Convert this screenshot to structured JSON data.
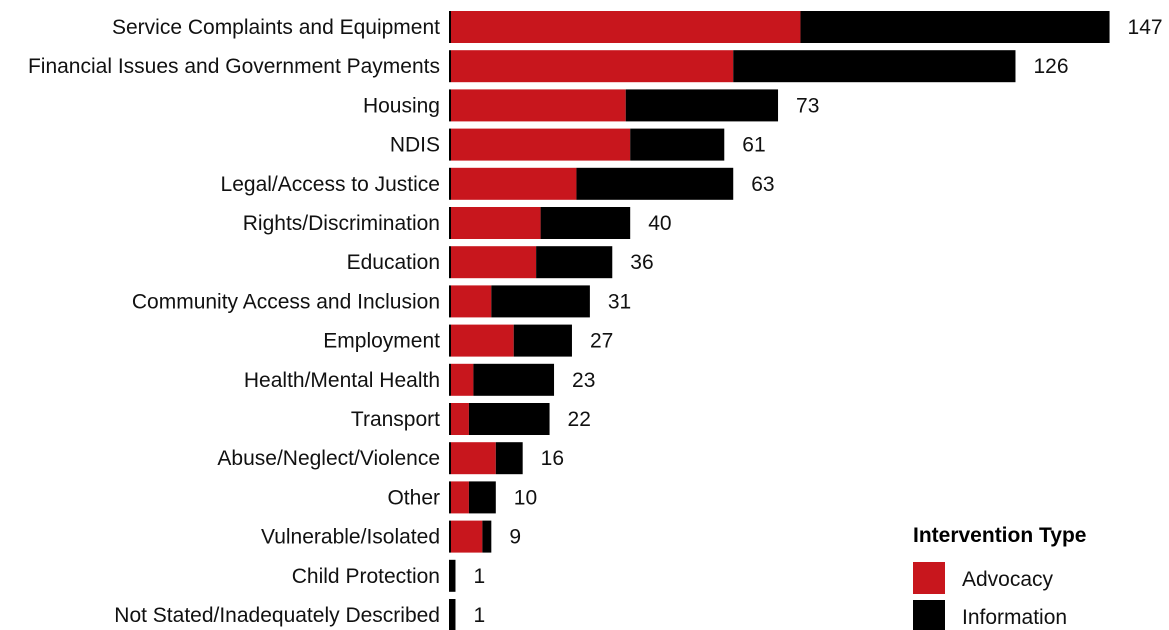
{
  "chart_data": {
    "type": "bar",
    "orientation": "horizontal",
    "stacked": true,
    "categories": [
      "Service Complaints and Equipment",
      "Financial Issues and Government Payments",
      "Housing",
      "NDIS",
      "Legal/Access to Justice",
      "Rights/Discrimination",
      "Education",
      "Community Access and Inclusion",
      "Employment",
      "Health/Mental Health",
      "Transport",
      "Abuse/Neglect/Violence",
      "Other",
      "Vulnerable/Isolated",
      "Child Protection",
      "Not Stated/Inadequately Described"
    ],
    "series": [
      {
        "name": "Advocacy",
        "color": "#c8161d",
        "values": [
          78,
          63,
          39,
          40,
          28,
          20,
          19,
          9,
          14,
          5,
          4,
          10,
          4,
          7,
          0,
          0
        ]
      },
      {
        "name": "Information",
        "color": "#000000",
        "values": [
          69,
          63,
          34,
          21,
          35,
          20,
          17,
          22,
          13,
          18,
          18,
          6,
          6,
          2,
          1,
          1
        ]
      }
    ],
    "totals": [
      "147",
      "126",
      "73",
      "61",
      "63",
      "40",
      "36",
      "31",
      "27",
      "23",
      "22",
      "16",
      "10",
      "9",
      "1",
      "1"
    ],
    "grid": false,
    "legend": {
      "title": "Intervention Type",
      "position": "bottom-right",
      "items": [
        {
          "label": "Advocacy",
          "color": "#c8161d"
        },
        {
          "label": "Information",
          "color": "#000000"
        }
      ]
    }
  }
}
